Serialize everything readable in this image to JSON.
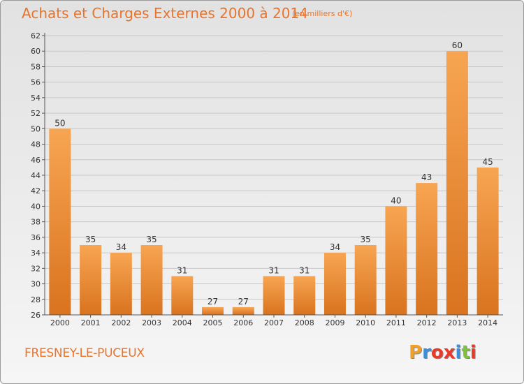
{
  "header": {
    "title": "Achats et Charges Externes 2000 à 2014",
    "subtitle": "(en milliers d'€)"
  },
  "footer": {
    "commune": "FRESNEY-LE-PUCEUX",
    "logo_letters": [
      "P",
      "r",
      "o",
      "x",
      "i",
      "t",
      "i"
    ],
    "logo_colors": [
      "#f0a028",
      "#3a8fd8",
      "#e83a2a",
      "#e83a2a",
      "#3a8fd8",
      "#7cc23a",
      "#e83a2a"
    ]
  },
  "colors": {
    "bar_light": "#f7a552",
    "bar_dark": "#d9731f",
    "axis": "#555555",
    "grid": "#c8c8c8",
    "text": "#333333"
  },
  "chart_data": {
    "type": "bar",
    "categories": [
      "2000",
      "2001",
      "2002",
      "2003",
      "2004",
      "2005",
      "2006",
      "2007",
      "2008",
      "2009",
      "2010",
      "2011",
      "2012",
      "2013",
      "2014"
    ],
    "values": [
      50,
      35,
      34,
      35,
      31,
      27,
      27,
      31,
      31,
      34,
      35,
      40,
      43,
      60,
      45
    ],
    "data_labels": [
      "50",
      "35",
      "34",
      "35",
      "31",
      "27",
      "27",
      "31",
      "31",
      "34",
      "35",
      "40",
      "43",
      "60",
      "45"
    ],
    "ylim": [
      26,
      62
    ],
    "yticks": [
      26,
      28,
      30,
      32,
      34,
      36,
      38,
      40,
      42,
      44,
      46,
      48,
      50,
      52,
      54,
      56,
      58,
      60,
      62
    ],
    "grid": true
  }
}
